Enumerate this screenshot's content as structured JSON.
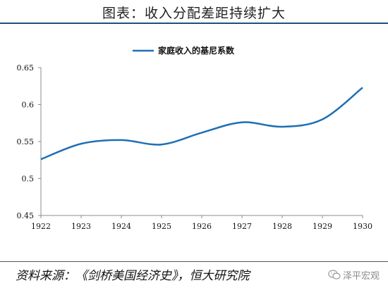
{
  "title": "图表：收入分配差距持续扩大",
  "source": "资料来源：《剑桥美国经济史》，恒大研究院",
  "watermark": "泽平宏观",
  "chart_data": {
    "type": "line",
    "series": [
      {
        "name": "家庭收入的基尼系数",
        "color": "#1f6fb5",
        "x": [
          1922,
          1923,
          1924,
          1925,
          1926,
          1927,
          1928,
          1929,
          1930
        ],
        "values": [
          0.526,
          0.547,
          0.552,
          0.546,
          0.562,
          0.576,
          0.57,
          0.58,
          0.623
        ]
      }
    ],
    "x_ticks": [
      "1922",
      "1923",
      "1924",
      "1925",
      "1926",
      "1927",
      "1928",
      "1929",
      "1930"
    ],
    "y_ticks": [
      "0.45",
      "0.5",
      "0.55",
      "0.6",
      "0.65"
    ],
    "xlim": [
      1922,
      1930
    ],
    "ylim": [
      0.45,
      0.65
    ],
    "grid": false,
    "legend_position": "top-center"
  }
}
